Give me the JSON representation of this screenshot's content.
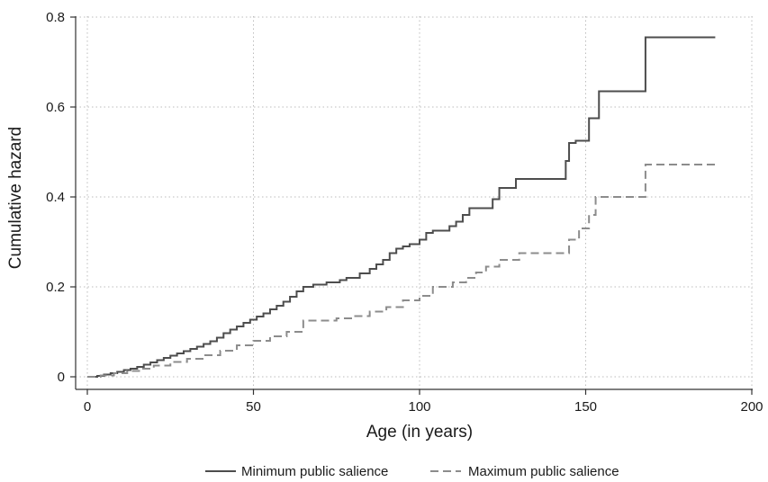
{
  "chart_data": {
    "type": "line",
    "title": "",
    "xlabel": "Age (in years)",
    "ylabel": "Cumulative hazard",
    "xlim": [
      0,
      200
    ],
    "ylim": [
      0,
      0.8
    ],
    "xticks": [
      0,
      50,
      100,
      150,
      200
    ],
    "yticks": [
      0,
      0.2,
      0.4,
      0.6,
      0.8
    ],
    "xtick_labels": [
      "0",
      "50",
      "100",
      "150",
      "200"
    ],
    "ytick_labels": [
      "0",
      "0.2",
      "0.4",
      "0.6",
      "0.8"
    ],
    "grid": true,
    "legend_position": "bottom",
    "series": [
      {
        "name": "Minimum public salience",
        "color": "#4d4d4d",
        "dash": "solid",
        "step": true,
        "x": [
          0,
          3,
          5,
          7,
          9,
          11,
          13,
          15,
          17,
          19,
          21,
          23,
          25,
          27,
          29,
          31,
          33,
          35,
          37,
          39,
          41,
          43,
          45,
          47,
          49,
          51,
          53,
          55,
          57,
          59,
          61,
          63,
          65,
          68,
          72,
          76,
          78,
          82,
          85,
          87,
          89,
          91,
          93,
          95,
          97,
          100,
          102,
          104,
          109,
          111,
          113,
          115,
          117,
          122,
          124,
          129,
          144,
          145,
          147,
          151,
          154,
          168,
          189
        ],
        "y": [
          0,
          0.002,
          0.005,
          0.008,
          0.011,
          0.015,
          0.018,
          0.022,
          0.027,
          0.032,
          0.037,
          0.042,
          0.047,
          0.052,
          0.057,
          0.062,
          0.067,
          0.073,
          0.079,
          0.087,
          0.097,
          0.105,
          0.112,
          0.12,
          0.127,
          0.134,
          0.141,
          0.15,
          0.158,
          0.167,
          0.178,
          0.19,
          0.2,
          0.205,
          0.21,
          0.215,
          0.22,
          0.23,
          0.24,
          0.25,
          0.26,
          0.275,
          0.285,
          0.29,
          0.295,
          0.305,
          0.32,
          0.325,
          0.335,
          0.345,
          0.36,
          0.375,
          0.375,
          0.395,
          0.42,
          0.44,
          0.48,
          0.52,
          0.525,
          0.575,
          0.635,
          0.755,
          0.755
        ]
      },
      {
        "name": "Maximum public salience",
        "color": "#8c8c8c",
        "dash": "dashed",
        "step": true,
        "x": [
          0,
          4,
          8,
          12,
          16,
          20,
          25,
          30,
          35,
          40,
          45,
          50,
          55,
          60,
          65,
          75,
          80,
          85,
          90,
          95,
          100,
          104,
          110,
          114,
          117,
          120,
          124,
          130,
          144,
          145,
          148,
          151,
          153,
          168,
          189
        ],
        "y": [
          0,
          0.003,
          0.008,
          0.013,
          0.018,
          0.025,
          0.033,
          0.04,
          0.048,
          0.058,
          0.07,
          0.08,
          0.09,
          0.1,
          0.125,
          0.13,
          0.135,
          0.145,
          0.155,
          0.17,
          0.18,
          0.2,
          0.21,
          0.22,
          0.232,
          0.245,
          0.26,
          0.275,
          0.275,
          0.305,
          0.33,
          0.36,
          0.4,
          0.472,
          0.472
        ]
      }
    ]
  }
}
